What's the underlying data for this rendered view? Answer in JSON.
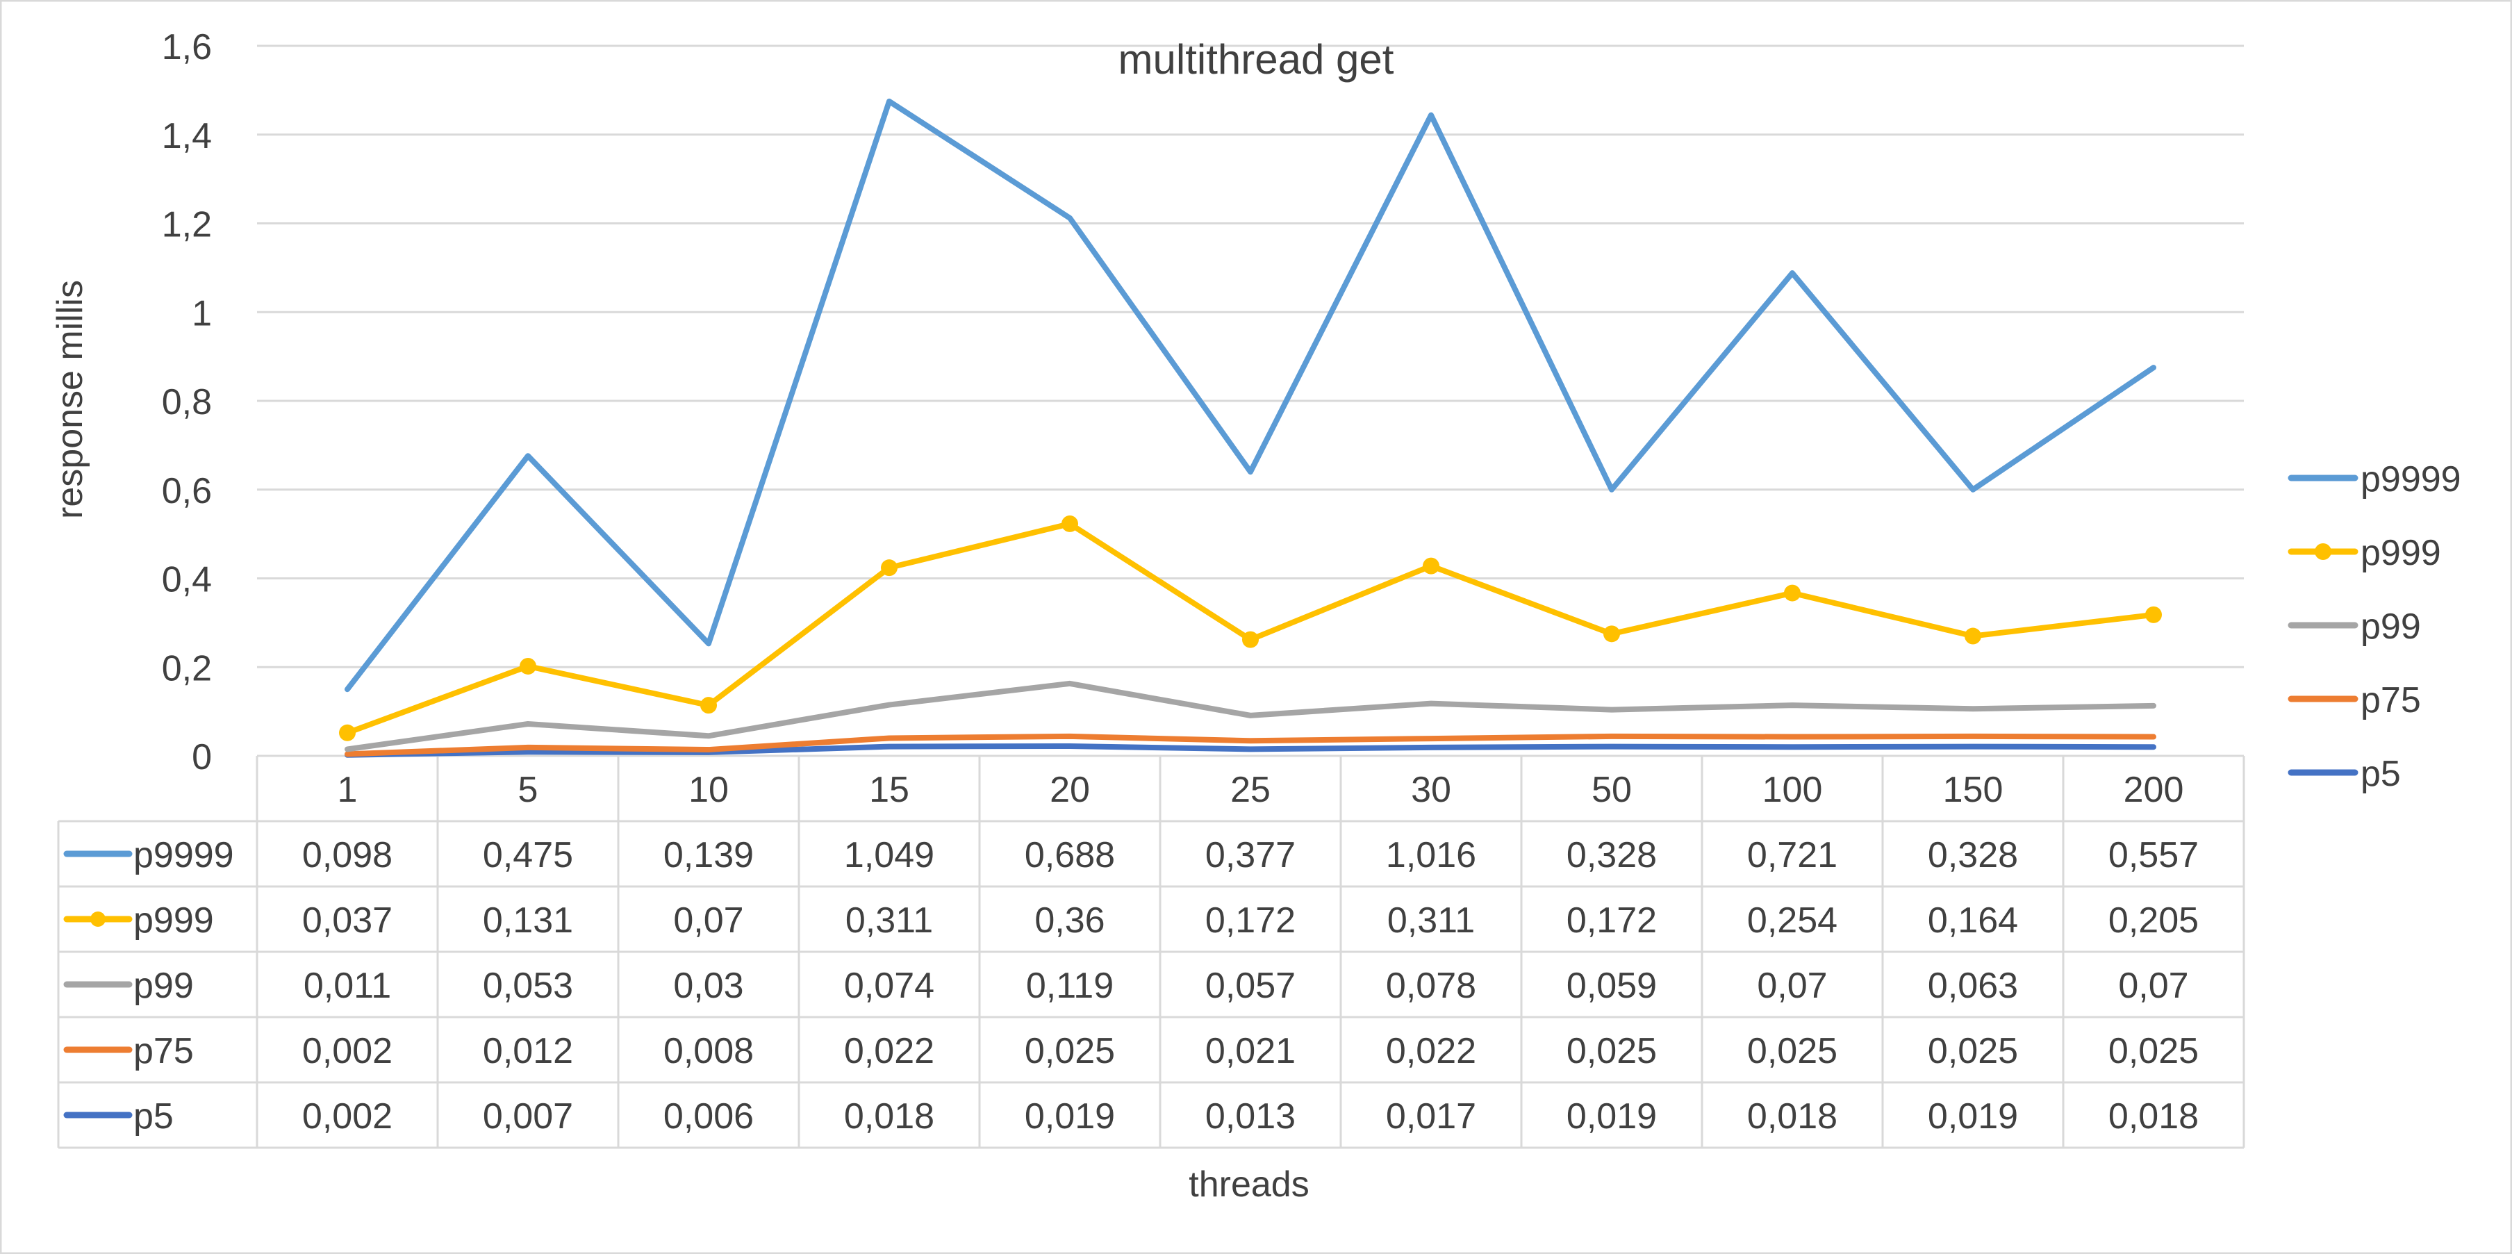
{
  "chart_data": {
    "type": "line",
    "title": "multithread get",
    "xlabel": "threads",
    "ylabel": "response millis",
    "ylim": [
      0,
      1.6
    ],
    "yticks": [
      "0",
      "0,2",
      "0,4",
      "0,6",
      "0,8",
      "1",
      "1,2",
      "1,4",
      "1,6"
    ],
    "yticks_values": [
      0,
      0.2,
      0.4,
      0.6,
      0.8,
      1.0,
      1.2,
      1.4,
      1.6
    ],
    "grid": true,
    "legend_position": "right",
    "data_table": true,
    "categories": [
      "1",
      "5",
      "10",
      "15",
      "20",
      "25",
      "30",
      "50",
      "100",
      "150",
      "200"
    ],
    "series": [
      {
        "name": "p9999",
        "color": "#5B9BD5",
        "marker": false,
        "values": [
          0.098,
          0.475,
          0.139,
          1.049,
          0.688,
          0.377,
          1.016,
          0.328,
          0.721,
          0.328,
          0.557
        ],
        "labels": [
          "0,098",
          "0,475",
          "0,139",
          "1,049",
          "0,688",
          "0,377",
          "1,016",
          "0,328",
          "0,721",
          "0,328",
          "0,557"
        ],
        "plotted": [
          0.15,
          0.676,
          0.253,
          1.475,
          1.212,
          0.64,
          1.444,
          0.6,
          1.088,
          0.6,
          0.875
        ]
      },
      {
        "name": "p999",
        "color": "#FFC000",
        "marker": true,
        "values": [
          0.037,
          0.131,
          0.07,
          0.311,
          0.36,
          0.172,
          0.311,
          0.172,
          0.254,
          0.164,
          0.205
        ],
        "labels": [
          "0,037",
          "0,131",
          "0,07",
          "0,311",
          "0,36",
          "0,172",
          "0,311",
          "0,172",
          "0,254",
          "0,164",
          "0,205"
        ],
        "plotted": [
          0.052,
          0.202,
          0.114,
          0.424,
          0.523,
          0.262,
          0.428,
          0.275,
          0.367,
          0.27,
          0.318
        ]
      },
      {
        "name": "p99",
        "color": "#A5A5A5",
        "marker": false,
        "values": [
          0.011,
          0.053,
          0.03,
          0.074,
          0.119,
          0.057,
          0.078,
          0.059,
          0.07,
          0.063,
          0.07
        ],
        "labels": [
          "0,011",
          "0,053",
          "0,03",
          "0,074",
          "0,119",
          "0,057",
          "0,078",
          "0,059",
          "0,07",
          "0,063",
          "0,07"
        ],
        "plotted": [
          0.015,
          0.072,
          0.045,
          0.115,
          0.163,
          0.091,
          0.118,
          0.104,
          0.114,
          0.106,
          0.113
        ]
      },
      {
        "name": "p75",
        "color": "#ED7D31",
        "marker": false,
        "values": [
          0.002,
          0.012,
          0.008,
          0.022,
          0.025,
          0.021,
          0.022,
          0.025,
          0.025,
          0.025,
          0.025
        ],
        "labels": [
          "0,002",
          "0,012",
          "0,008",
          "0,022",
          "0,025",
          "0,021",
          "0,022",
          "0,025",
          "0,025",
          "0,025",
          "0,025"
        ],
        "plotted": [
          0.004,
          0.019,
          0.014,
          0.04,
          0.044,
          0.034,
          0.039,
          0.044,
          0.043,
          0.044,
          0.043
        ]
      },
      {
        "name": "p5",
        "color": "#4472C4",
        "marker": false,
        "values": [
          0.002,
          0.007,
          0.006,
          0.018,
          0.019,
          0.013,
          0.017,
          0.019,
          0.018,
          0.019,
          0.018
        ],
        "labels": [
          "0,002",
          "0,007",
          "0,006",
          "0,018",
          "0,019",
          "0,013",
          "0,017",
          "0,019",
          "0,018",
          "0,019",
          "0,018"
        ],
        "plotted": [
          0.002,
          0.009,
          0.008,
          0.021,
          0.022,
          0.015,
          0.019,
          0.021,
          0.02,
          0.021,
          0.02
        ]
      }
    ]
  }
}
